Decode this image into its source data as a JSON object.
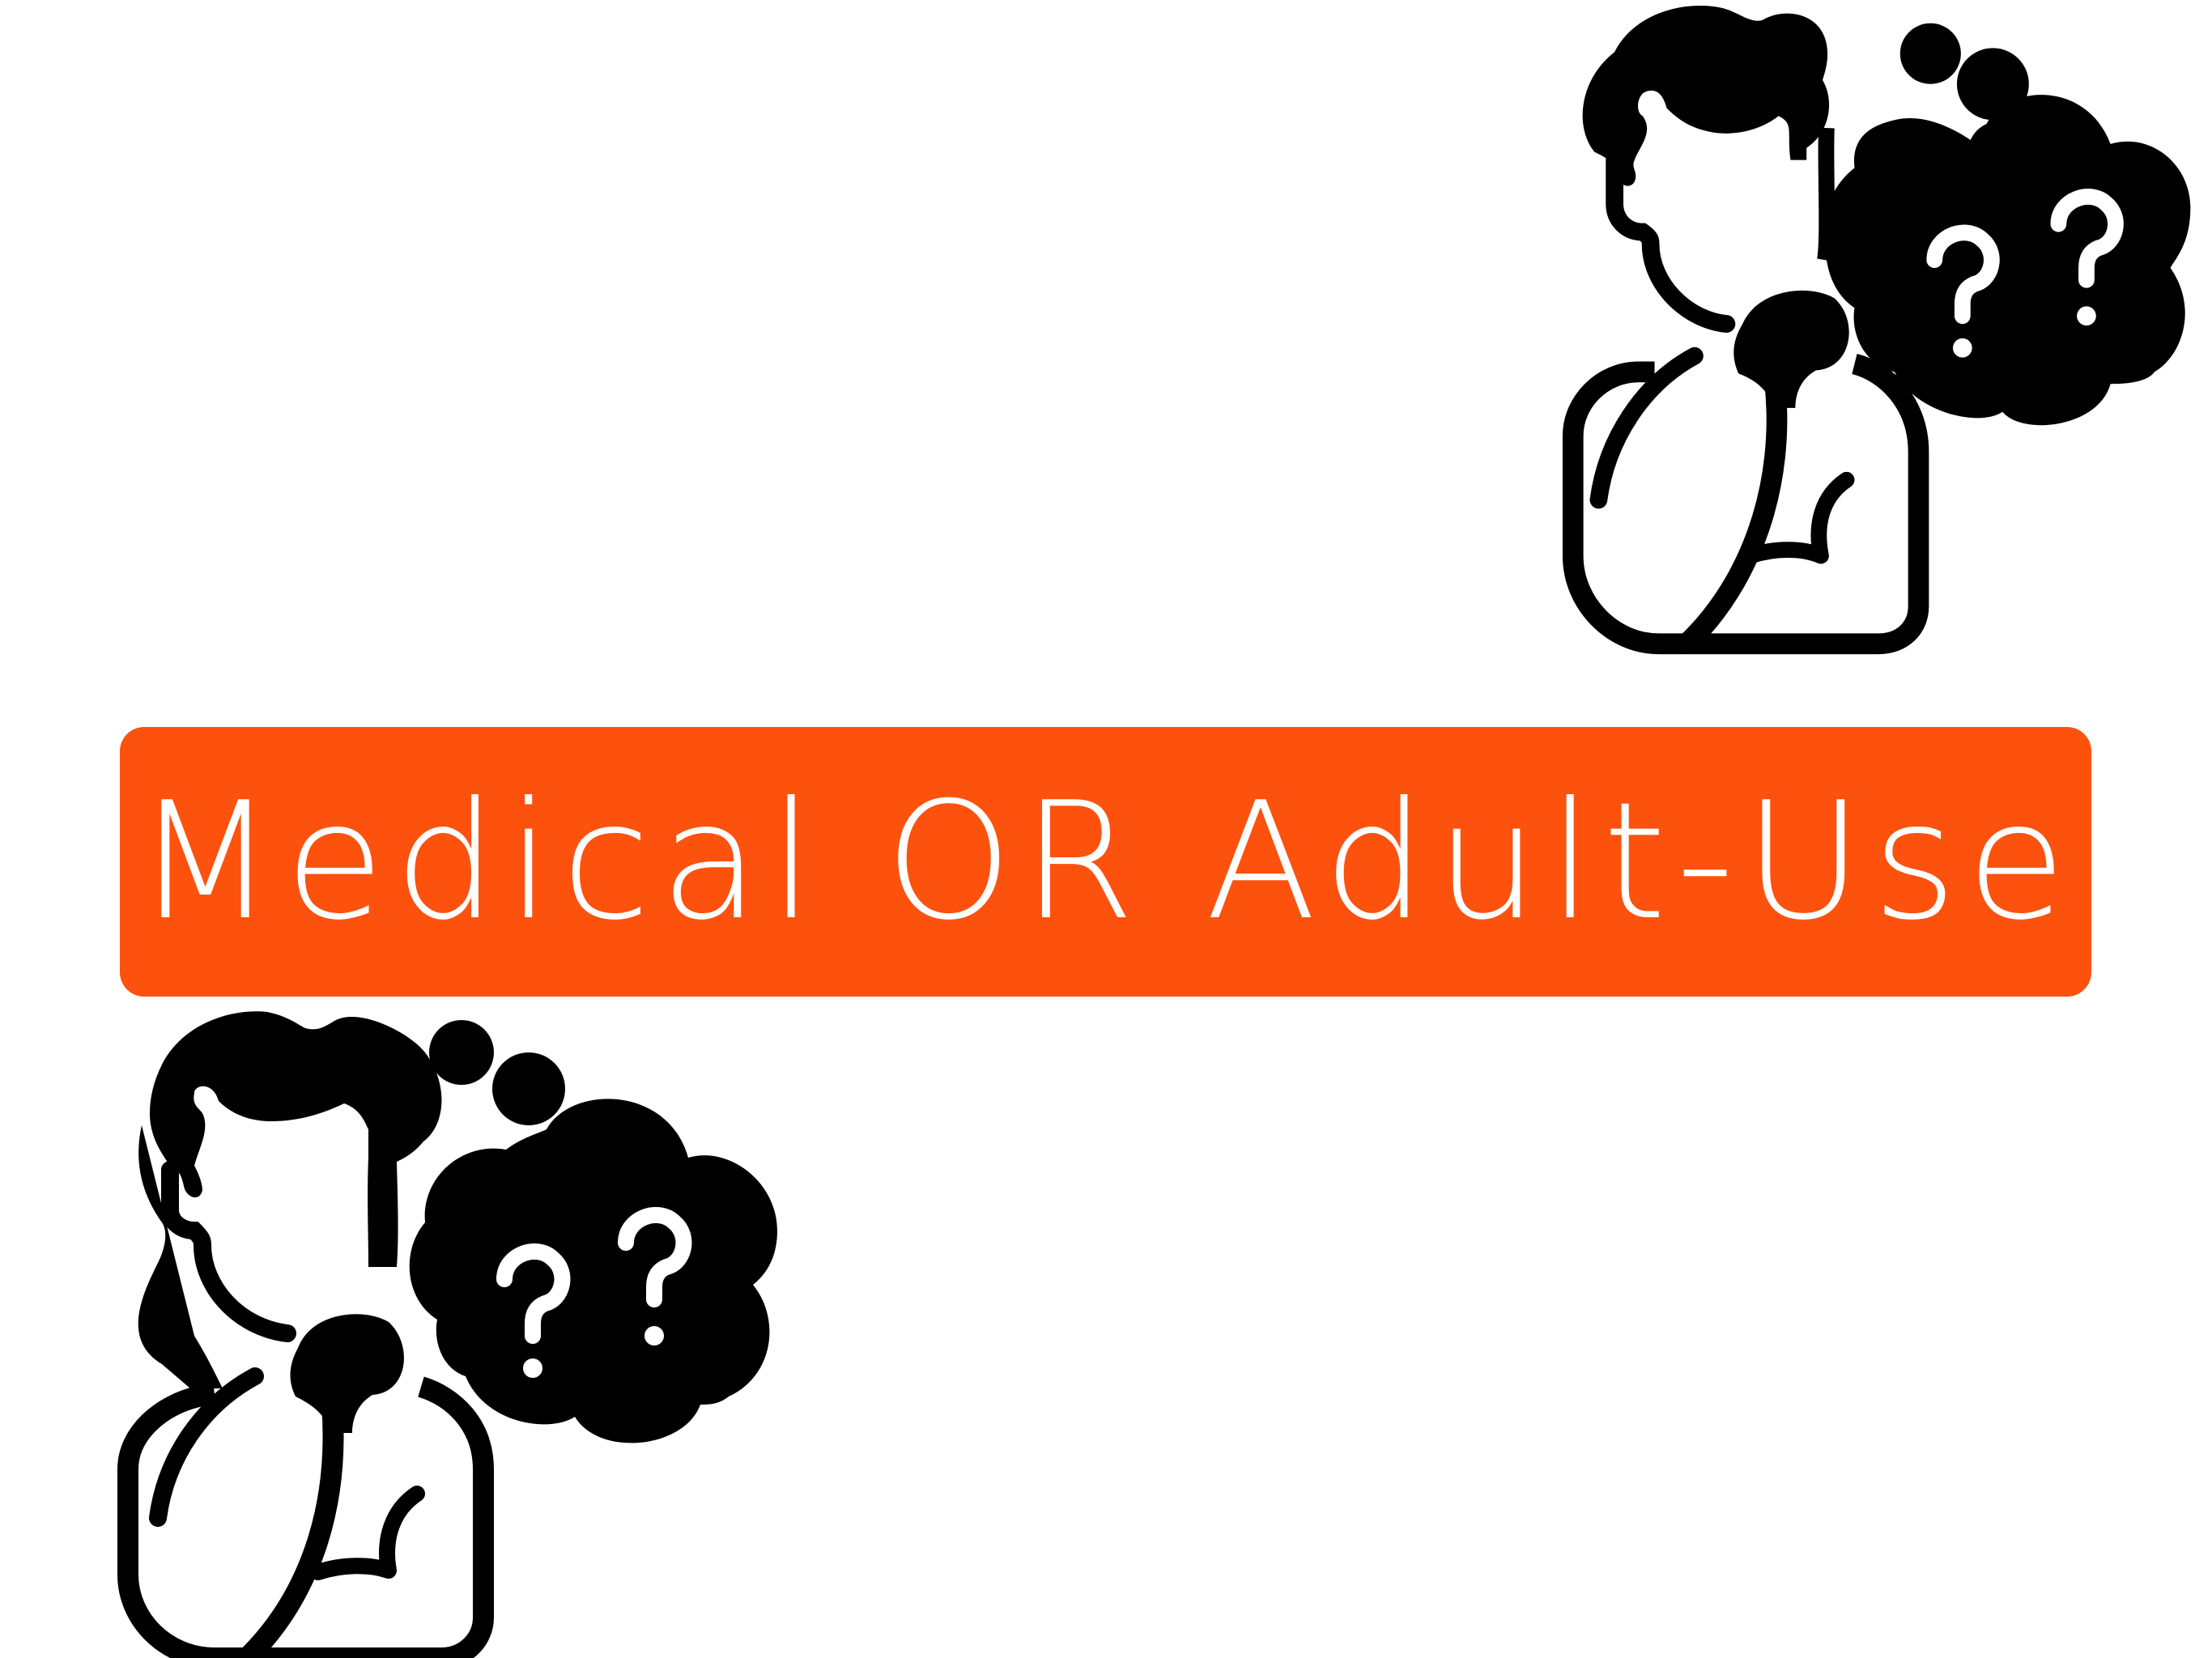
{
  "banner": {
    "text": "Medical OR Adult-Use",
    "background_color": "#FC520E",
    "text_color": "#FFFFFF"
  },
  "illustrations": [
    {
      "icon": "thinking-person-icon",
      "thought_bubble": "question-marks-icon"
    },
    {
      "icon": "thinking-person-icon",
      "thought_bubble": "question-marks-icon"
    }
  ],
  "colors": {
    "ink": "#000000",
    "page": "#FFFFFF"
  }
}
